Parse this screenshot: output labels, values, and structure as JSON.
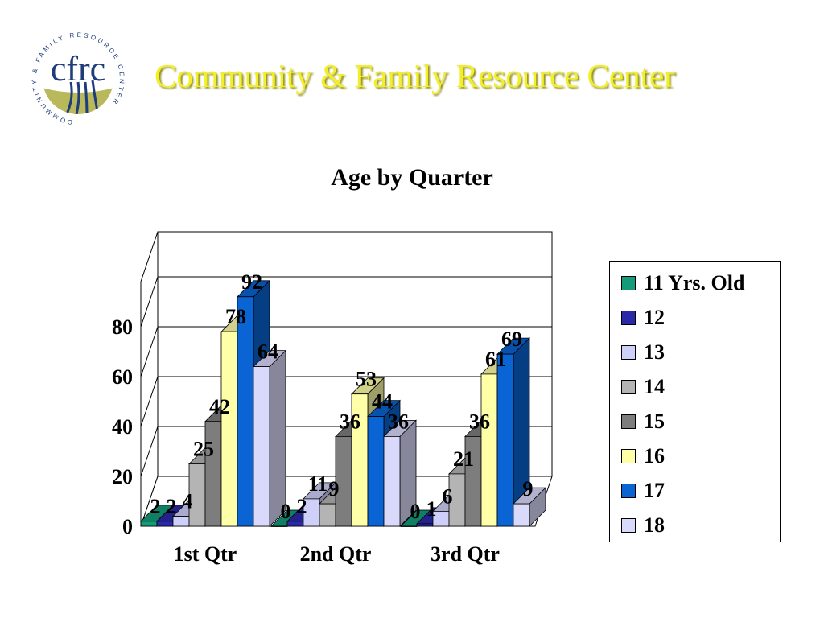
{
  "header": {
    "org_title": "Community & Family Resource Center",
    "logo": {
      "icon": "cfrc-logo",
      "monogram": "cfrc",
      "ring_text": "COMMUNITY & FAMILY RESOURCE CENTER"
    }
  },
  "chart_data": {
    "type": "bar",
    "style": "3d-clustered-column",
    "title": "Age by Quarter",
    "categories": [
      "1st Qtr",
      "2nd Qtr",
      "3rd Qtr"
    ],
    "series": [
      {
        "name": "11 Yrs. Old",
        "values": [
          2,
          0,
          0
        ],
        "color": "#149b7a"
      },
      {
        "name": "12",
        "values": [
          2,
          2,
          1
        ],
        "color": "#2a2aa8"
      },
      {
        "name": "13",
        "values": [
          4,
          11,
          6
        ],
        "color": "#cfd0fa"
      },
      {
        "name": "14",
        "values": [
          25,
          9,
          21
        ],
        "color": "#b4b4b4"
      },
      {
        "name": "15",
        "values": [
          42,
          36,
          36
        ],
        "color": "#7d7d7d"
      },
      {
        "name": "16",
        "values": [
          78,
          53,
          61
        ],
        "color": "#ffffa8"
      },
      {
        "name": "17",
        "values": [
          92,
          44,
          69
        ],
        "color": "#0a64d4"
      },
      {
        "name": "18",
        "values": [
          64,
          36,
          9
        ],
        "color": "#d9d9fb"
      }
    ],
    "yticks": [
      0,
      20,
      40,
      60,
      80
    ],
    "ylim": [
      0,
      100
    ],
    "grid": true,
    "legend": "right"
  }
}
